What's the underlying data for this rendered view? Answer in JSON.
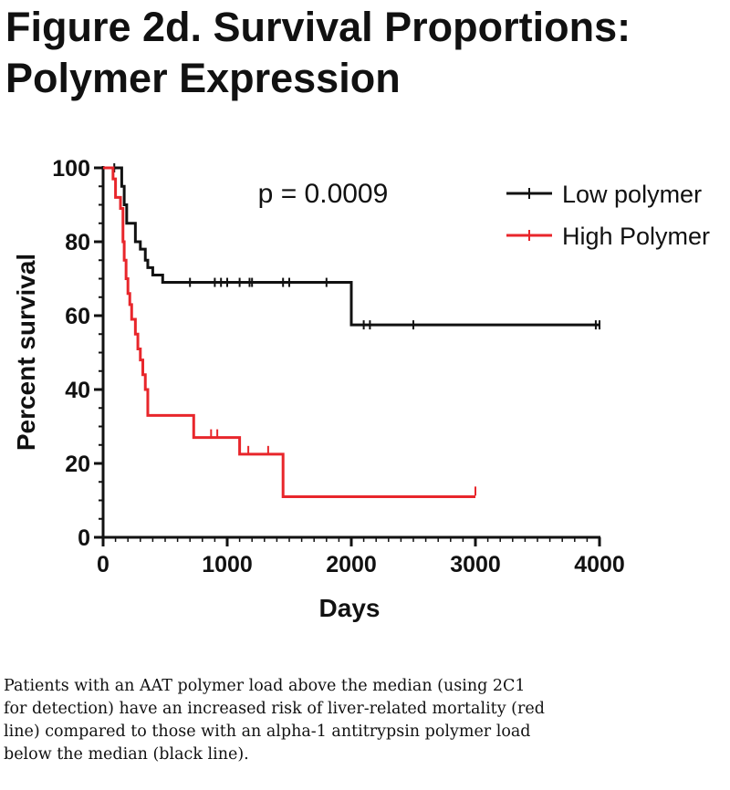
{
  "title_lines": [
    "Figure 2d.  Survival Proportions:",
    "Polymer Expression"
  ],
  "caption_lines": [
    "Patients with an AAT polymer load above the median (using 2C1",
    "for detection) have an increased risk of liver-related mortality (red",
    "line) compared to those with an alpha-1 antitrypsin polymer load",
    "below the median (black line)."
  ],
  "chart_data": {
    "type": "line",
    "subtype": "kaplan-meier step",
    "xlabel": "Days",
    "ylabel": "Percent survival",
    "xlim": [
      0,
      4000
    ],
    "ylim": [
      0,
      100
    ],
    "x_ticks": [
      0,
      1000,
      2000,
      3000,
      4000
    ],
    "y_ticks": [
      0,
      20,
      40,
      60,
      80,
      100
    ],
    "grid": false,
    "legend_position": "top-right",
    "annotation": "p = 0.0009",
    "series": [
      {
        "name": "Low polymer",
        "color": "#111111",
        "steps": [
          [
            0,
            100
          ],
          [
            110,
            100
          ],
          [
            150,
            95
          ],
          [
            170,
            90
          ],
          [
            190,
            85
          ],
          [
            260,
            80
          ],
          [
            300,
            78
          ],
          [
            340,
            75
          ],
          [
            360,
            73
          ],
          [
            400,
            71
          ],
          [
            480,
            69
          ],
          [
            2000,
            57.5
          ],
          [
            4000,
            57.5
          ]
        ],
        "censored": [
          [
            90,
            100
          ],
          [
            700,
            69
          ],
          [
            900,
            69
          ],
          [
            950,
            69
          ],
          [
            1000,
            69
          ],
          [
            1100,
            69
          ],
          [
            1180,
            69
          ],
          [
            1200,
            69
          ],
          [
            1450,
            69
          ],
          [
            1500,
            69
          ],
          [
            1800,
            69
          ],
          [
            2100,
            57.5
          ],
          [
            2150,
            57.5
          ],
          [
            2500,
            57.5
          ],
          [
            3970,
            57.5
          ],
          [
            4000,
            57.5
          ]
        ]
      },
      {
        "name": "High Polymer",
        "color": "#e8262b",
        "steps": [
          [
            0,
            100
          ],
          [
            80,
            97
          ],
          [
            100,
            92
          ],
          [
            140,
            89
          ],
          [
            160,
            80
          ],
          [
            170,
            75
          ],
          [
            185,
            70
          ],
          [
            200,
            66
          ],
          [
            215,
            63
          ],
          [
            230,
            59
          ],
          [
            260,
            55
          ],
          [
            280,
            51
          ],
          [
            300,
            48
          ],
          [
            320,
            44
          ],
          [
            340,
            40
          ],
          [
            360,
            33
          ],
          [
            730,
            27
          ],
          [
            1100,
            22.5
          ],
          [
            1450,
            11
          ],
          [
            3000,
            11
          ]
        ],
        "censored": [
          [
            870,
            28
          ],
          [
            920,
            28
          ],
          [
            1170,
            23.5
          ],
          [
            1330,
            23.5
          ],
          [
            3000,
            12.5
          ]
        ]
      }
    ]
  }
}
